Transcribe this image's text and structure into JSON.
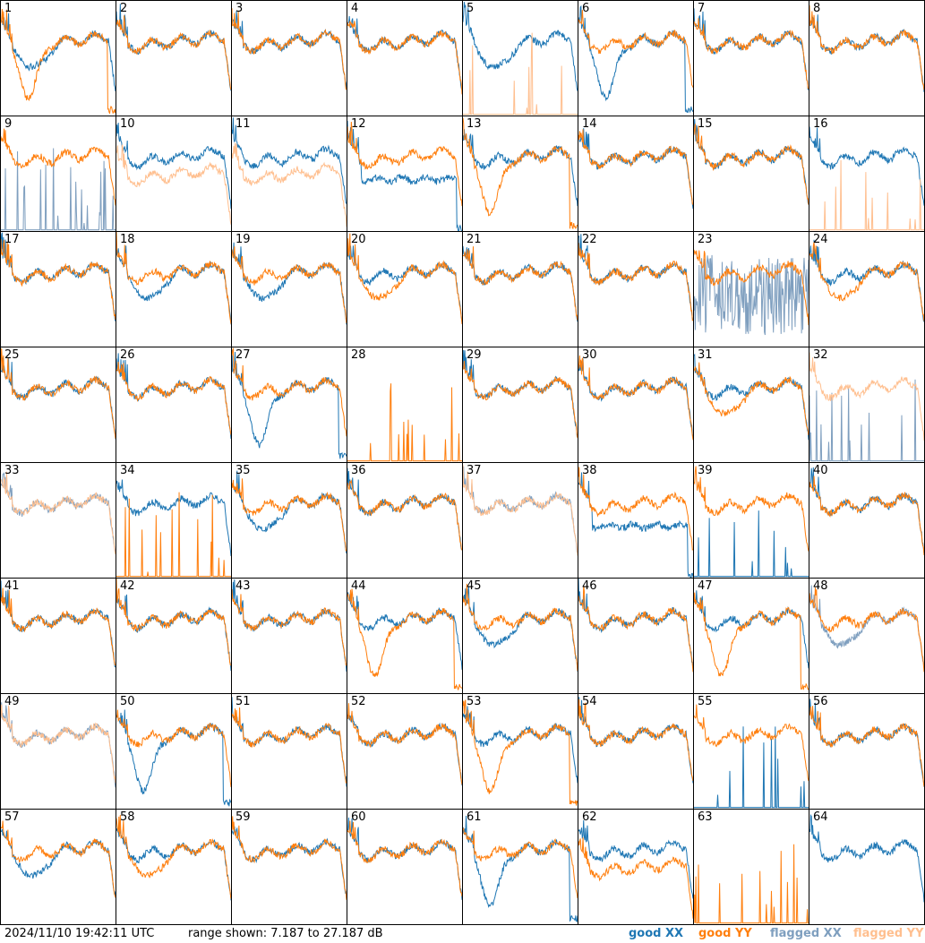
{
  "footer": {
    "timestamp": "2024/11/10 19:42:11 UTC",
    "range": "range shown: 7.187 to 27.187 dB"
  },
  "legend": [
    {
      "key": "good_xx",
      "label": "good XX",
      "color": "#1f77b4"
    },
    {
      "key": "good_yy",
      "label": "good YY",
      "color": "#ff7f0e"
    },
    {
      "key": "flagged_xx",
      "label": "flagged XX",
      "color": "#7f9fbf"
    },
    {
      "key": "flagged_yy",
      "label": "flagged YY",
      "color": "#ffbf8f"
    }
  ],
  "chart_data": {
    "type": "line",
    "ylim": [
      7.187,
      27.187
    ],
    "grid": false,
    "legend_placement": "bottom-right",
    "panels": [
      {
        "label": "1",
        "xx": "good",
        "yy": "good",
        "xx_profile": "dip",
        "yy_profile": "deepdip"
      },
      {
        "label": "2",
        "xx": "good",
        "yy": "good",
        "xx_profile": "normal",
        "yy_profile": "normal"
      },
      {
        "label": "3",
        "xx": "good",
        "yy": "good",
        "xx_profile": "normal",
        "yy_profile": "normal"
      },
      {
        "label": "4",
        "xx": "good",
        "yy": "good",
        "xx_profile": "normal",
        "yy_profile": "normal"
      },
      {
        "label": "5",
        "xx": "good",
        "yy": "flagged",
        "xx_profile": "dip",
        "yy_profile": "spikes"
      },
      {
        "label": "6",
        "xx": "good",
        "yy": "good",
        "xx_profile": "deepdip",
        "yy_profile": "normal"
      },
      {
        "label": "7",
        "xx": "good",
        "yy": "good",
        "xx_profile": "normal",
        "yy_profile": "normal"
      },
      {
        "label": "8",
        "xx": "good",
        "yy": "good",
        "xx_profile": "normal",
        "yy_profile": "normal"
      },
      {
        "label": "9",
        "xx": "flagged",
        "yy": "good",
        "xx_profile": "spikes",
        "yy_profile": "normal"
      },
      {
        "label": "10",
        "xx": "good",
        "yy": "flagged",
        "xx_profile": "normal",
        "yy_profile": "low"
      },
      {
        "label": "11",
        "xx": "good",
        "yy": "flagged",
        "xx_profile": "normal",
        "yy_profile": "low"
      },
      {
        "label": "12",
        "xx": "good",
        "yy": "good",
        "xx_profile": "flatdrop",
        "yy_profile": "normal"
      },
      {
        "label": "13",
        "xx": "good",
        "yy": "good",
        "xx_profile": "normal",
        "yy_profile": "deepdip"
      },
      {
        "label": "14",
        "xx": "good",
        "yy": "good",
        "xx_profile": "normal",
        "yy_profile": "normal"
      },
      {
        "label": "15",
        "xx": "good",
        "yy": "good",
        "xx_profile": "normal",
        "yy_profile": "normal"
      },
      {
        "label": "16",
        "xx": "good",
        "yy": "flagged",
        "xx_profile": "normal",
        "yy_profile": "spikes"
      },
      {
        "label": "17",
        "xx": "good",
        "yy": "good",
        "xx_profile": "normal",
        "yy_profile": "normal"
      },
      {
        "label": "18",
        "xx": "good",
        "yy": "good",
        "xx_profile": "dip",
        "yy_profile": "normal"
      },
      {
        "label": "19",
        "xx": "good",
        "yy": "good",
        "xx_profile": "dip",
        "yy_profile": "normal"
      },
      {
        "label": "20",
        "xx": "good",
        "yy": "good",
        "xx_profile": "normal",
        "yy_profile": "dip"
      },
      {
        "label": "21",
        "xx": "good",
        "yy": "good",
        "xx_profile": "normal",
        "yy_profile": "normal"
      },
      {
        "label": "22",
        "xx": "good",
        "yy": "good",
        "xx_profile": "normal",
        "yy_profile": "normal"
      },
      {
        "label": "23",
        "xx": "flagged",
        "yy": "good",
        "xx_profile": "noisy",
        "yy_profile": "normal"
      },
      {
        "label": "24",
        "xx": "good",
        "yy": "good",
        "xx_profile": "normal",
        "yy_profile": "dip"
      },
      {
        "label": "25",
        "xx": "good",
        "yy": "good",
        "xx_profile": "normal",
        "yy_profile": "normal"
      },
      {
        "label": "26",
        "xx": "good",
        "yy": "good",
        "xx_profile": "normal",
        "yy_profile": "normal"
      },
      {
        "label": "27",
        "xx": "good",
        "yy": "good",
        "xx_profile": "deepdip",
        "yy_profile": "normal"
      },
      {
        "label": "28",
        "xx": "none",
        "yy": "good",
        "xx_profile": "none",
        "yy_profile": "spikes"
      },
      {
        "label": "29",
        "xx": "good",
        "yy": "good",
        "xx_profile": "normal",
        "yy_profile": "normal"
      },
      {
        "label": "30",
        "xx": "good",
        "yy": "good",
        "xx_profile": "normal",
        "yy_profile": "normal"
      },
      {
        "label": "31",
        "xx": "good",
        "yy": "good",
        "xx_profile": "normal",
        "yy_profile": "dip"
      },
      {
        "label": "32",
        "xx": "flagged",
        "yy": "flagged",
        "xx_profile": "spikes",
        "yy_profile": "normal"
      },
      {
        "label": "33",
        "xx": "flagged",
        "yy": "flagged",
        "xx_profile": "normal",
        "yy_profile": "normal"
      },
      {
        "label": "34",
        "xx": "good",
        "yy": "good",
        "xx_profile": "normal",
        "yy_profile": "spikes"
      },
      {
        "label": "35",
        "xx": "good",
        "yy": "good",
        "xx_profile": "dip",
        "yy_profile": "normal"
      },
      {
        "label": "36",
        "xx": "good",
        "yy": "good",
        "xx_profile": "normal",
        "yy_profile": "normal"
      },
      {
        "label": "37",
        "xx": "flagged",
        "yy": "flagged",
        "xx_profile": "normal",
        "yy_profile": "normal"
      },
      {
        "label": "38",
        "xx": "good",
        "yy": "good",
        "xx_profile": "flatdrop",
        "yy_profile": "normal"
      },
      {
        "label": "39",
        "xx": "good",
        "yy": "good",
        "xx_profile": "spikes",
        "yy_profile": "normal"
      },
      {
        "label": "40",
        "xx": "good",
        "yy": "good",
        "xx_profile": "normal",
        "yy_profile": "normal"
      },
      {
        "label": "41",
        "xx": "good",
        "yy": "good",
        "xx_profile": "normal",
        "yy_profile": "normal"
      },
      {
        "label": "42",
        "xx": "good",
        "yy": "good",
        "xx_profile": "normal",
        "yy_profile": "normal"
      },
      {
        "label": "43",
        "xx": "good",
        "yy": "good",
        "xx_profile": "normal",
        "yy_profile": "normal"
      },
      {
        "label": "44",
        "xx": "good",
        "yy": "good",
        "xx_profile": "normal",
        "yy_profile": "deepdip"
      },
      {
        "label": "45",
        "xx": "good",
        "yy": "good",
        "xx_profile": "dip",
        "yy_profile": "normal"
      },
      {
        "label": "46",
        "xx": "good",
        "yy": "good",
        "xx_profile": "normal",
        "yy_profile": "normal"
      },
      {
        "label": "47",
        "xx": "good",
        "yy": "good",
        "xx_profile": "normal",
        "yy_profile": "deepdip"
      },
      {
        "label": "48",
        "xx": "flagged",
        "yy": "good",
        "xx_profile": "dip",
        "yy_profile": "normal"
      },
      {
        "label": "49",
        "xx": "flagged",
        "yy": "flagged",
        "xx_profile": "normal",
        "yy_profile": "normal"
      },
      {
        "label": "50",
        "xx": "good",
        "yy": "good",
        "xx_profile": "deepdip",
        "yy_profile": "normal"
      },
      {
        "label": "51",
        "xx": "good",
        "yy": "good",
        "xx_profile": "normal",
        "yy_profile": "normal"
      },
      {
        "label": "52",
        "xx": "good",
        "yy": "good",
        "xx_profile": "normal",
        "yy_profile": "normal"
      },
      {
        "label": "53",
        "xx": "good",
        "yy": "good",
        "xx_profile": "normal",
        "yy_profile": "deepdip"
      },
      {
        "label": "54",
        "xx": "good",
        "yy": "good",
        "xx_profile": "normal",
        "yy_profile": "normal"
      },
      {
        "label": "55",
        "xx": "good",
        "yy": "good",
        "xx_profile": "spikes",
        "yy_profile": "normal"
      },
      {
        "label": "56",
        "xx": "good",
        "yy": "good",
        "xx_profile": "normal",
        "yy_profile": "normal"
      },
      {
        "label": "57",
        "xx": "good",
        "yy": "good",
        "xx_profile": "dip",
        "yy_profile": "normal"
      },
      {
        "label": "58",
        "xx": "good",
        "yy": "good",
        "xx_profile": "normal",
        "yy_profile": "dip"
      },
      {
        "label": "59",
        "xx": "good",
        "yy": "good",
        "xx_profile": "normal",
        "yy_profile": "normal"
      },
      {
        "label": "60",
        "xx": "good",
        "yy": "good",
        "xx_profile": "normal",
        "yy_profile": "normal"
      },
      {
        "label": "61",
        "xx": "good",
        "yy": "good",
        "xx_profile": "deepdip",
        "yy_profile": "normal"
      },
      {
        "label": "62",
        "xx": "good",
        "yy": "good",
        "xx_profile": "normal",
        "yy_profile": "low"
      },
      {
        "label": "63",
        "xx": "none",
        "yy": "good",
        "xx_profile": "none",
        "yy_profile": "spikes"
      },
      {
        "label": "64",
        "xx": "good",
        "yy": "none",
        "xx_profile": "normal",
        "yy_profile": "none"
      }
    ]
  }
}
